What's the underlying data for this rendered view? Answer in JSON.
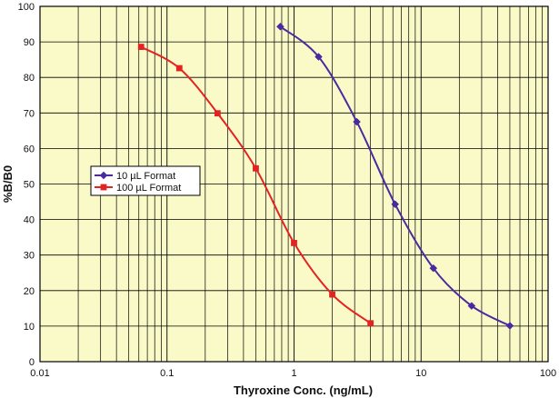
{
  "chart_data": {
    "type": "line",
    "title": "",
    "xlabel": "Thyroxine Conc. (ng/mL)",
    "ylabel": "%B/B0",
    "x_scale": "log",
    "xlim": [
      0.01,
      100
    ],
    "ylim": [
      0,
      100
    ],
    "x_ticks": [
      0.01,
      0.1,
      1,
      10,
      100
    ],
    "x_tick_labels": [
      "0.01",
      "0.1",
      "1",
      "10",
      "100"
    ],
    "y_ticks": [
      0,
      10,
      20,
      30,
      40,
      50,
      60,
      70,
      80,
      90,
      100
    ],
    "y_tick_labels": [
      "0",
      "10",
      "20",
      "30",
      "40",
      "50",
      "60",
      "70",
      "80",
      "90",
      "100"
    ],
    "grid": true,
    "plot_background": "#fafac8",
    "grid_color": "#000000",
    "legend_position": "left",
    "series": [
      {
        "name": "10 µL Format",
        "color": "#4b2aa0",
        "marker": "diamond",
        "x": [
          0.78,
          1.56,
          3.12,
          6.25,
          12.5,
          25,
          50
        ],
        "y": [
          94.3,
          85.8,
          67.5,
          44.3,
          26.3,
          15.7,
          10.1
        ]
      },
      {
        "name": "100 µL Format",
        "color": "#e32222",
        "marker": "square",
        "x": [
          0.0625,
          0.125,
          0.25,
          0.5,
          1,
          2,
          4
        ],
        "y": [
          88.6,
          82.6,
          69.9,
          54.4,
          33.4,
          18.9,
          10.8
        ]
      }
    ]
  }
}
